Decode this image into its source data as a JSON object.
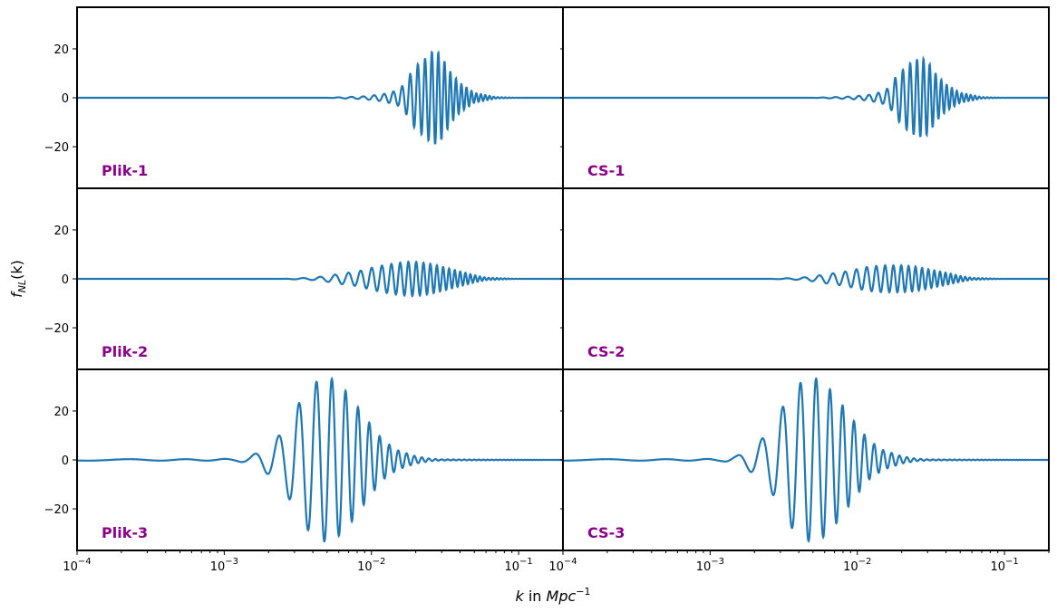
{
  "chart_data": {
    "type": "line",
    "ylabel": "f_NL(k)",
    "xlabel": "k in Mpc^-1",
    "xscale": "log",
    "xlim": [
      0.0001,
      0.2
    ],
    "ylim": [
      -37,
      37
    ],
    "yticks": [
      -20,
      0,
      20
    ],
    "ytick_labels": [
      "−20",
      "0",
      "20"
    ],
    "xticks": [
      0.0001,
      0.001,
      0.01,
      0.1
    ],
    "xtick_labels": [
      {
        "base": "10",
        "exp": "−4"
      },
      {
        "base": "10",
        "exp": "−3"
      },
      {
        "base": "10",
        "exp": "−2"
      },
      {
        "base": "10",
        "exp": "−1"
      }
    ],
    "line_color": "#1f77b4",
    "label_color": "#8b008b",
    "grid": false,
    "panels": [
      {
        "label": "Plik-1",
        "row": 0,
        "col": 0,
        "x": [
          0.0001,
          0.005,
          0.009,
          0.012,
          0.015,
          0.017,
          0.018,
          0.02,
          0.022,
          0.024,
          0.026,
          0.028,
          0.03,
          0.032,
          0.035,
          0.04,
          0.05,
          0.07,
          0.1,
          0.2
        ],
        "envelope": [
          0,
          0,
          0.6,
          1.5,
          3,
          6,
          9,
          13,
          15,
          17,
          19,
          19,
          17,
          14,
          10,
          6,
          2,
          0.3,
          0,
          0
        ]
      },
      {
        "label": "CS-1",
        "row": 0,
        "col": 1,
        "x": [
          0.0001,
          0.005,
          0.009,
          0.012,
          0.015,
          0.017,
          0.018,
          0.02,
          0.022,
          0.024,
          0.026,
          0.028,
          0.03,
          0.032,
          0.035,
          0.04,
          0.05,
          0.07,
          0.1,
          0.2
        ],
        "envelope": [
          0,
          0,
          0.5,
          1.2,
          2.5,
          5,
          8,
          11,
          13.5,
          15,
          16,
          16,
          15,
          12.5,
          9,
          5.5,
          2,
          0.3,
          0,
          0
        ]
      },
      {
        "label": "Plik-2",
        "row": 1,
        "col": 0,
        "x": [
          0.0001,
          0.0025,
          0.004,
          0.005,
          0.006,
          0.008,
          0.01,
          0.012,
          0.015,
          0.018,
          0.02,
          0.025,
          0.03,
          0.04,
          0.05,
          0.06,
          0.1,
          0.2
        ],
        "envelope": [
          0,
          0,
          0.5,
          1.2,
          2,
          3,
          4.5,
          5.5,
          6.5,
          7,
          7,
          6.2,
          5,
          3,
          1.5,
          0.5,
          0,
          0
        ]
      },
      {
        "label": "CS-2",
        "row": 1,
        "col": 1,
        "x": [
          0.0001,
          0.0025,
          0.004,
          0.005,
          0.006,
          0.008,
          0.01,
          0.012,
          0.015,
          0.018,
          0.02,
          0.025,
          0.03,
          0.04,
          0.05,
          0.06,
          0.1,
          0.2
        ],
        "envelope": [
          0,
          0,
          0.4,
          1,
          1.8,
          2.8,
          4,
          5,
          5.5,
          5.5,
          5.5,
          5,
          4,
          2.5,
          1.2,
          0.4,
          0,
          0
        ]
      },
      {
        "label": "Plik-3",
        "row": 2,
        "col": 0,
        "x": [
          0.0001,
          0.0008,
          0.0012,
          0.0015,
          0.0018,
          0.0022,
          0.0026,
          0.003,
          0.0035,
          0.004,
          0.0045,
          0.005,
          0.0055,
          0.006,
          0.007,
          0.008,
          0.01,
          0.012,
          0.015,
          0.02,
          0.025,
          0.03,
          0.2
        ],
        "envelope": [
          0.3,
          0.3,
          0.5,
          1.5,
          4,
          8,
          13,
          20,
          27,
          31,
          33,
          33.5,
          33,
          31,
          27,
          22,
          14,
          8,
          4,
          1.5,
          0.5,
          0.2,
          0
        ]
      },
      {
        "label": "CS-3",
        "row": 2,
        "col": 1,
        "x": [
          0.0001,
          0.0008,
          0.0012,
          0.0015,
          0.0018,
          0.0022,
          0.0026,
          0.003,
          0.0035,
          0.004,
          0.0045,
          0.005,
          0.0055,
          0.006,
          0.007,
          0.008,
          0.01,
          0.012,
          0.015,
          0.02,
          0.025,
          0.03,
          0.2
        ],
        "envelope": [
          0.3,
          0.3,
          0.5,
          1.5,
          4,
          8,
          13,
          20,
          27,
          31,
          33,
          33.5,
          33,
          31,
          27,
          22,
          14,
          8,
          4,
          1.5,
          0.5,
          0.2,
          0
        ]
      }
    ]
  }
}
